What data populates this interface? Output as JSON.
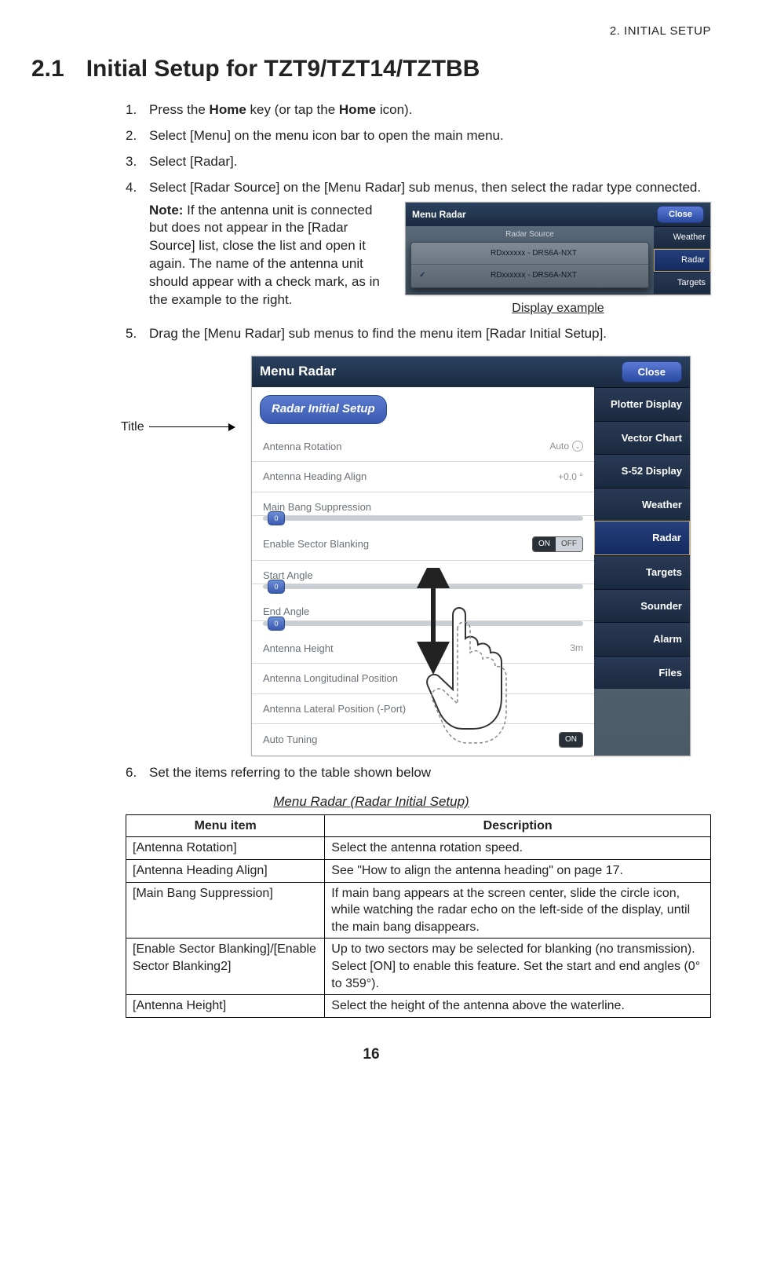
{
  "chapter_header": "2.  INITIAL SETUP",
  "section": {
    "num": "2.1",
    "title": "Initial Setup for TZT9/TZT14/TZTBB"
  },
  "steps": {
    "s1_a": "Press the ",
    "s1_b": "Home",
    "s1_c": " key (or tap the ",
    "s1_d": "Home",
    "s1_e": " icon).",
    "s2": "Select [Menu] on the menu icon bar to open the main menu.",
    "s3": "Select [Radar].",
    "s4": "Select [Radar Source] on the [Menu Radar] sub menus, then select the radar type connected.",
    "note_label": "Note:",
    "note_body": " If the antenna unit is connected but does not appear in the [Radar Source] list, close the list and open it again. The name of the antenna unit should appear with a check mark, as in the example to the right.",
    "s5": "Drag the [Menu Radar] sub menus to find the menu item [Radar Initial Setup].",
    "s6": "Set the items referring to the table shown below"
  },
  "mini": {
    "title": "Menu Radar",
    "close": "Close",
    "src_label": "Radar Source",
    "opt1": "RDxxxxxx - DRS6A-NXT",
    "opt2": "RDxxxxxx - DRS6A-NXT",
    "tab1": "Weather",
    "tab2": "Radar",
    "tab3": "Targets",
    "caption": "Display example"
  },
  "big": {
    "title": "Menu Radar",
    "close": "Close",
    "callout": "Title",
    "setup_title": "Radar Initial Setup",
    "rows": {
      "r1": "Antenna Rotation",
      "r1v": "Auto",
      "r2": "Antenna Heading Align",
      "r2v": "+0.0 °",
      "r3": "Main Bang Suppression",
      "r4": "Enable Sector Blanking",
      "r5": "Start Angle",
      "r6": "End Angle",
      "r7": "Antenna Height",
      "r7v": "3m",
      "r8": "Antenna Longitudinal Position",
      "r9": "Antenna Lateral Position (-Port)",
      "r10": "Auto Tuning",
      "on": "ON",
      "off": "OFF",
      "zero": "0"
    },
    "tabs": [
      "Plotter Display",
      "Vector Chart",
      "S-52 Display",
      "Weather",
      "Radar",
      "Targets",
      "Sounder",
      "Alarm",
      "Files"
    ],
    "active_tab_index": 4
  },
  "table": {
    "caption": "Menu Radar (Radar Initial Setup)",
    "h1": "Menu item",
    "h2": "Description",
    "r1a": "[Antenna Rotation]",
    "r1b": "Select the antenna rotation speed.",
    "r2a": "[Antenna Heading Align]",
    "r2b": "See \"How to align the antenna heading\" on page 17.",
    "r3a": "[Main Bang Suppression]",
    "r3b": "If main bang appears at the screen center, slide the circle icon, while watching the radar echo on the left-side of the display, until the main bang disappears.",
    "r4a": "[Enable Sector Blanking]/[Enable Sector Blanking2]",
    "r4b": "Up to two sectors may be selected for blanking (no transmission). Select [ON] to enable this feature. Set the start and end angles (0° to 359°).",
    "r5a": "[Antenna Height]",
    "r5b": "Select the height of the antenna above the waterline."
  },
  "page_number": "16"
}
